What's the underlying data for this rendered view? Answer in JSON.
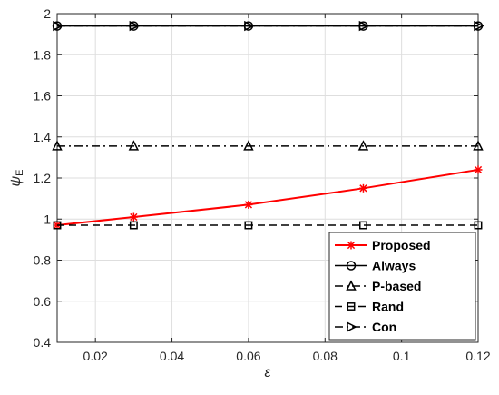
{
  "chart_data": {
    "type": "line",
    "xlabel": "ε",
    "ylabel": "ψ",
    "ylabel_subscript": "E",
    "xlim": [
      0.01,
      0.12
    ],
    "ylim": [
      0.4,
      2.0
    ],
    "xticks": [
      0.02,
      0.04,
      0.06,
      0.08,
      0.1,
      0.12
    ],
    "xtick_labels": [
      "0.02",
      "0.04",
      "0.06",
      "0.08",
      "0.1",
      "0.12"
    ],
    "yticks": [
      0.4,
      0.6,
      0.8,
      1.0,
      1.2,
      1.4,
      1.6,
      1.8,
      2.0
    ],
    "ytick_labels": [
      "0.4",
      "0.6",
      "0.8",
      "1",
      "1.2",
      "1.4",
      "1.6",
      "1.8",
      "2"
    ],
    "grid": true,
    "legend_position": "bottom-right",
    "x": [
      0.01,
      0.03,
      0.06,
      0.09,
      0.12
    ],
    "series": [
      {
        "name": "Proposed",
        "values": [
          0.97,
          1.01,
          1.07,
          1.15,
          1.24
        ],
        "color": "#ff0000",
        "dash": "solid",
        "marker": "asterisk"
      },
      {
        "name": "Always",
        "values": [
          1.94,
          1.94,
          1.94,
          1.94,
          1.94
        ],
        "color": "#000000",
        "dash": "solid",
        "marker": "circle"
      },
      {
        "name": "P-based",
        "values": [
          1.355,
          1.355,
          1.355,
          1.355,
          1.355
        ],
        "color": "#000000",
        "dash": "dashdot",
        "marker": "triangle-up"
      },
      {
        "name": "Rand",
        "values": [
          0.97,
          0.97,
          0.97,
          0.97,
          0.97
        ],
        "color": "#000000",
        "dash": "dashed",
        "marker": "square"
      },
      {
        "name": "Con",
        "values": [
          1.94,
          1.94,
          1.94,
          1.94,
          1.94
        ],
        "color": "#000000",
        "dash": "dashdot",
        "marker": "triangle-right"
      }
    ]
  }
}
